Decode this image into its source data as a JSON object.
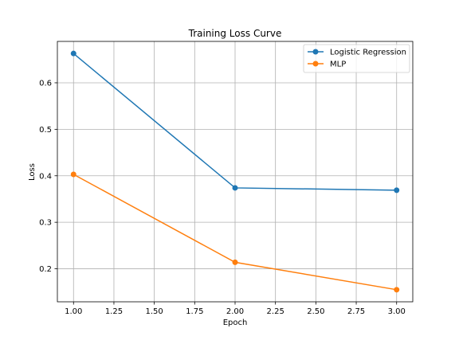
{
  "chart_data": {
    "type": "line",
    "title": "Training Loss Curve",
    "xlabel": "Epoch",
    "ylabel": "Loss",
    "x": [
      1,
      2,
      3
    ],
    "xlim": [
      0.9,
      3.1
    ],
    "ylim": [
      0.129,
      0.689
    ],
    "xticks": [
      1.0,
      1.25,
      1.5,
      1.75,
      2.0,
      2.25,
      2.5,
      2.75,
      3.0
    ],
    "xtick_labels": [
      "1.00",
      "1.25",
      "1.50",
      "1.75",
      "2.00",
      "2.25",
      "2.50",
      "2.75",
      "3.00"
    ],
    "yticks": [
      0.2,
      0.3,
      0.4,
      0.5,
      0.6
    ],
    "ytick_labels": [
      "0.2",
      "0.3",
      "0.4",
      "0.5",
      "0.6"
    ],
    "grid": true,
    "legend_position": "top-right",
    "series": [
      {
        "name": "Logistic Regression",
        "color": "#1f77b4",
        "marker": "circle",
        "values": [
          0.663,
          0.374,
          0.369
        ]
      },
      {
        "name": "MLP",
        "color": "#ff7f0e",
        "marker": "circle",
        "values": [
          0.403,
          0.214,
          0.155
        ]
      }
    ]
  }
}
